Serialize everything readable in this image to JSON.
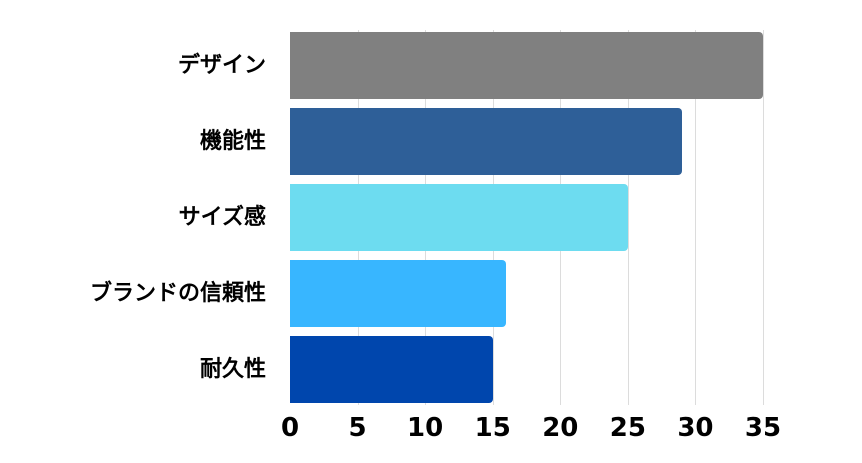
{
  "chart_data": {
    "type": "bar",
    "orientation": "horizontal",
    "title": "",
    "xlabel": "",
    "ylabel": "",
    "categories": [
      "デザイン",
      "機能性",
      "サイズ感",
      "ブランドの信頼性",
      "耐久性"
    ],
    "values": [
      35,
      29,
      25,
      16,
      15
    ],
    "colors": [
      "#808080",
      "#2e5f98",
      "#6ddcf0",
      "#38b6ff",
      "#0046ad"
    ],
    "xlim": [
      0,
      35
    ],
    "xticks": [
      "0",
      "5",
      "10",
      "15",
      "20",
      "25",
      "30",
      "35"
    ],
    "grid": true,
    "legend": "none"
  }
}
